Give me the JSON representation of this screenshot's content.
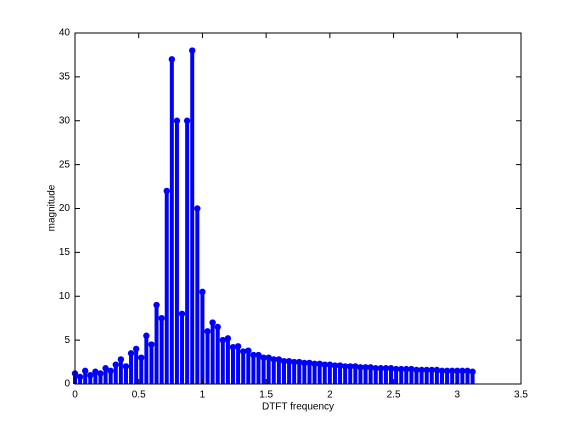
{
  "chart_data": {
    "type": "stem",
    "xlabel": "DTFT frequency",
    "ylabel": "magnitude",
    "color": "#0000ff",
    "x": [
      0,
      0.04,
      0.08,
      0.12,
      0.16,
      0.2,
      0.24,
      0.28,
      0.32,
      0.36,
      0.4,
      0.44,
      0.48,
      0.52,
      0.56,
      0.6,
      0.64,
      0.68,
      0.72,
      0.76,
      0.8,
      0.84,
      0.88,
      0.92,
      0.96,
      1.0,
      1.04,
      1.08,
      1.12,
      1.16,
      1.2,
      1.24,
      1.28,
      1.32,
      1.36,
      1.4,
      1.44,
      1.48,
      1.52,
      1.56,
      1.6,
      1.64,
      1.68,
      1.72,
      1.76,
      1.8,
      1.84,
      1.88,
      1.92,
      1.96,
      2.0,
      2.04,
      2.08,
      2.12,
      2.16,
      2.2,
      2.24,
      2.28,
      2.32,
      2.36,
      2.4,
      2.44,
      2.48,
      2.52,
      2.56,
      2.6,
      2.64,
      2.68,
      2.72,
      2.76,
      2.8,
      2.84,
      2.88,
      2.92,
      2.96,
      3.0,
      3.04,
      3.08,
      3.12
    ],
    "values": [
      1.2,
      0.8,
      1.5,
      1.0,
      1.4,
      1.2,
      1.8,
      1.5,
      2.2,
      2.8,
      2.0,
      3.5,
      4.0,
      3.0,
      5.5,
      4.5,
      9.0,
      7.5,
      22,
      37,
      30,
      8,
      30,
      38,
      20,
      10.5,
      6,
      7,
      6.5,
      5,
      5.2,
      4.2,
      4.3,
      3.7,
      3.8,
      3.3,
      3.3,
      3.0,
      3.0,
      2.8,
      2.8,
      2.6,
      2.6,
      2.5,
      2.5,
      2.4,
      2.4,
      2.3,
      2.3,
      2.2,
      2.2,
      2.1,
      2.1,
      2.0,
      2.0,
      2.0,
      1.9,
      1.9,
      1.9,
      1.8,
      1.8,
      1.8,
      1.8,
      1.7,
      1.7,
      1.7,
      1.7,
      1.6,
      1.6,
      1.6,
      1.6,
      1.6,
      1.5,
      1.5,
      1.5,
      1.5,
      1.5,
      1.5,
      1.4
    ],
    "xlim": [
      0,
      3.5
    ],
    "xticks": [
      0,
      0.5,
      1,
      1.5,
      2,
      2.5,
      3,
      3.5
    ],
    "ylim": [
      0,
      40
    ],
    "yticks": [
      0,
      5,
      10,
      15,
      20,
      25,
      30,
      35,
      40
    ]
  }
}
